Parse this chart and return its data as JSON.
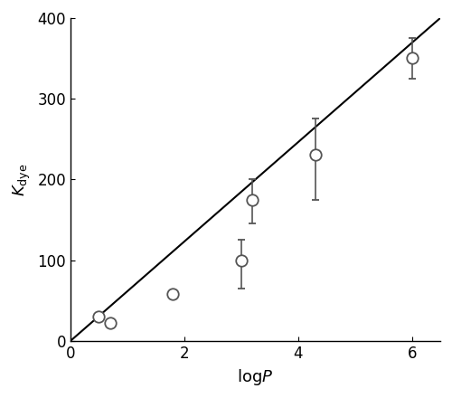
{
  "x": [
    0.5,
    0.7,
    1.8,
    3.0,
    3.2,
    4.3,
    6.0
  ],
  "y": [
    30,
    22,
    58,
    100,
    175,
    230,
    350
  ],
  "yerr_low": [
    5,
    5,
    5,
    35,
    30,
    55,
    25
  ],
  "yerr_high": [
    5,
    5,
    5,
    25,
    25,
    45,
    25
  ],
  "line_x": [
    0.0,
    6.5
  ],
  "line_y": [
    0.0,
    400.0
  ],
  "xlabel": "log$P$",
  "ylabel": "$K_\\mathrm{dye}$",
  "xlim": [
    0,
    6.5
  ],
  "ylim": [
    0,
    400
  ],
  "xticks": [
    0,
    2,
    4,
    6
  ],
  "yticks": [
    0,
    100,
    200,
    300,
    400
  ],
  "marker_size": 9,
  "marker_color": "white",
  "marker_edgecolor": "#555555",
  "marker_edgewidth": 1.3,
  "line_color": "black",
  "line_width": 1.5,
  "cap_size": 3,
  "elinewidth": 1.2,
  "ecolor": "#555555"
}
